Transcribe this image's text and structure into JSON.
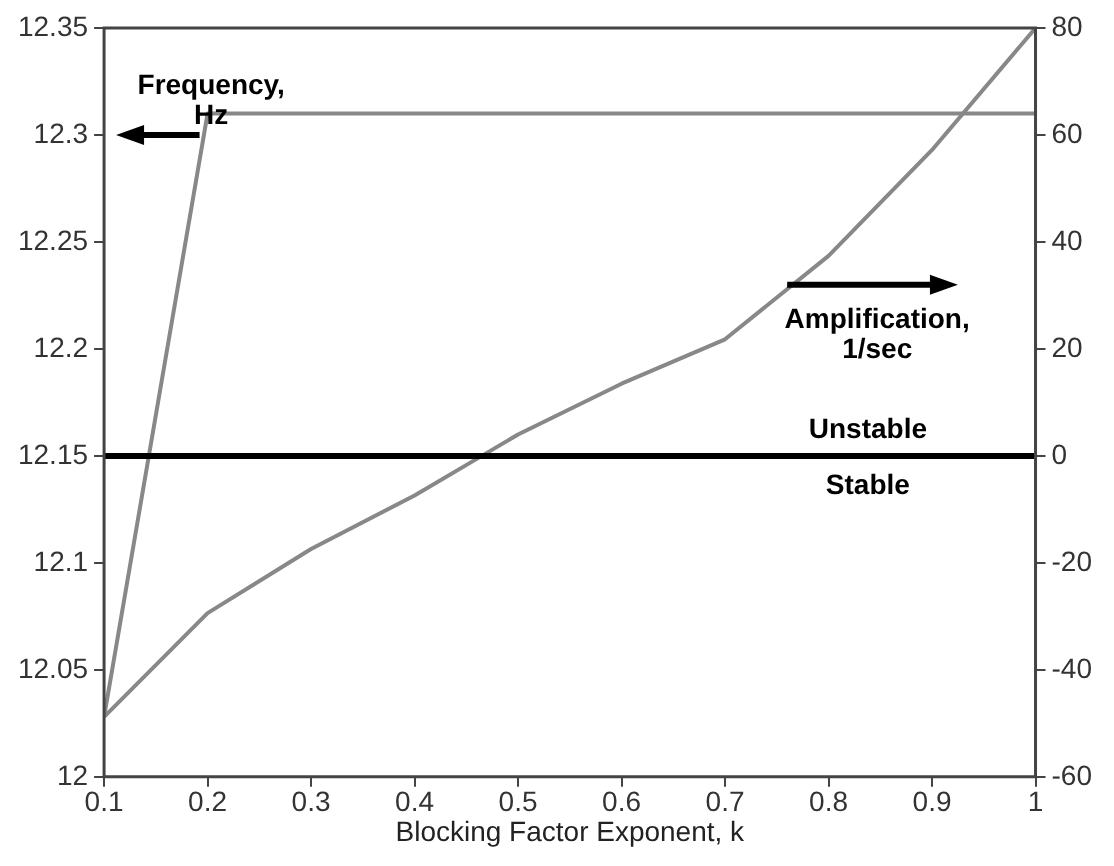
{
  "chart_data": {
    "type": "line",
    "xlabel": "Blocking Factor Exponent, k",
    "xlim": [
      0.1,
      1
    ],
    "xticks": [
      0.1,
      0.2,
      0.3,
      0.4,
      0.5,
      0.6,
      0.7,
      0.8,
      0.9,
      1
    ],
    "ylim": [
      12,
      12.35
    ],
    "yticks": [
      12,
      12.05,
      12.1,
      12.15,
      12.2,
      12.25,
      12.3,
      12.35
    ],
    "y2lim": [
      -60,
      80
    ],
    "y2ticks": [
      -60,
      -40,
      -20,
      0,
      20,
      40,
      60,
      80
    ],
    "series": [
      {
        "color": "#888888",
        "x": [
          0.1,
          0.2,
          1
        ],
        "values": [
          12.028,
          12.31,
          12.31
        ]
      },
      {
        "color": "#888888",
        "axis": "y2",
        "x": [
          0.1,
          0.2,
          0.3,
          0.4,
          0.465,
          0.5,
          0.6,
          0.7,
          0.8,
          0.9,
          1
        ],
        "values": [
          -48.8,
          -29.4,
          -17.4,
          -7.4,
          0,
          4,
          13.5,
          21.8,
          37.4,
          57.2,
          80
        ]
      }
    ],
    "ref_lines": [
      {
        "axis": "y2",
        "value": 0,
        "label": "Unstable",
        "color": "#000000"
      }
    ],
    "annotations": [
      "Frequency,\nHz",
      "Amplification,\n1/sec",
      "Stable"
    ],
    "grid": false,
    "legend": false,
    "marker": "none",
    "line_style": "solid"
  }
}
